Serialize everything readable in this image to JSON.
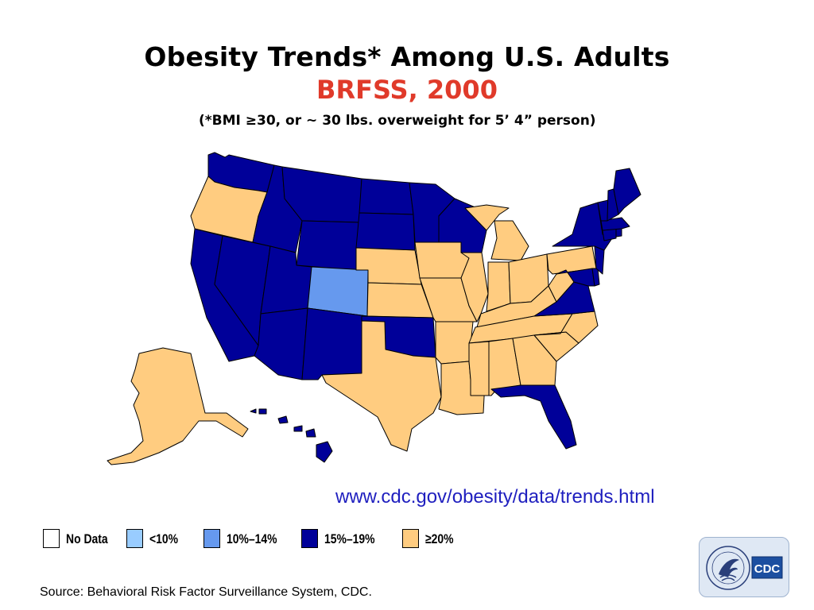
{
  "title": "Obesity Trends* Among U.S. Adults",
  "subtitle": "BRFSS, 2000",
  "footnote": "(*BMI ≥30, or ~ 30 lbs. overweight for 5’ 4” person)",
  "url": "www.cdc.gov/obesity/data/trends.html",
  "source": "Source: Behavioral Risk Factor Surveillance System, CDC.",
  "legend": [
    {
      "label": "No Data",
      "color": "#ffffff"
    },
    {
      "label": "<10%",
      "color": "#99ccff"
    },
    {
      "label": "10%–14%",
      "color": "#6699ee"
    },
    {
      "label": "15%–19%",
      "color": "#000099"
    },
    {
      "label": "≥20%",
      "color": "#ffcc80"
    }
  ],
  "logo": {
    "text": "CDC",
    "icon": "hhs-eagle-icon"
  },
  "map_data": {
    "type": "choropleth",
    "region": "United States",
    "categories": {
      "lt10": "<10%",
      "10to14": "10%–14%",
      "15to19": "15%–19%",
      "ge20": "≥20%"
    },
    "states": {
      "WA": "15to19",
      "OR": "ge20",
      "CA": "15to19",
      "NV": "15to19",
      "ID": "15to19",
      "MT": "15to19",
      "WY": "15to19",
      "UT": "15to19",
      "AZ": "15to19",
      "CO": "10to14",
      "NM": "15to19",
      "ND": "15to19",
      "SD": "15to19",
      "NE": "ge20",
      "KS": "ge20",
      "OK": "15to19",
      "TX": "ge20",
      "MN": "15to19",
      "IA": "ge20",
      "MO": "ge20",
      "AR": "ge20",
      "LA": "ge20",
      "WI": "15to19",
      "IL": "ge20",
      "MI": "ge20",
      "IN": "ge20",
      "OH": "ge20",
      "KY": "ge20",
      "TN": "ge20",
      "MS": "ge20",
      "AL": "ge20",
      "GA": "ge20",
      "FL": "15to19",
      "SC": "ge20",
      "NC": "ge20",
      "VA": "15to19",
      "WV": "ge20",
      "MD": "15to19",
      "DE": "15to19",
      "PA": "ge20",
      "NY": "15to19",
      "NJ": "15to19",
      "CT": "15to19",
      "RI": "15to19",
      "MA": "15to19",
      "VT": "15to19",
      "NH": "15to19",
      "ME": "15to19",
      "AK": "ge20",
      "HI": "15to19"
    }
  }
}
